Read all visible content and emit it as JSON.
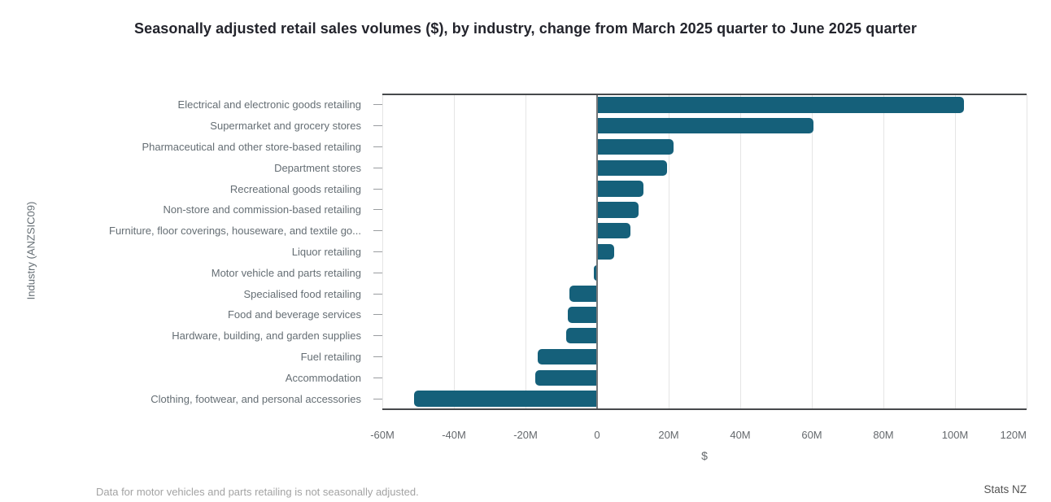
{
  "title": "Seasonally adjusted retail sales volumes ($), by industry, change from March 2025 quarter to June 2025 quarter",
  "footnote": "Data for motor vehicles and parts retailing is not seasonally adjusted.",
  "source": "Stats NZ",
  "colors": {
    "bar": "#15607a",
    "title_text": "#23242c",
    "category_label": "#656e74",
    "tick_label": "#65696d",
    "grid_line": "#e5e5e5",
    "zero_line": "#737678",
    "axis_border": "#47494c",
    "footnote_text": "#a3a3a3",
    "source_text": "#525252"
  },
  "chart_data": {
    "type": "bar",
    "orientation": "horizontal",
    "title": "Seasonally adjusted retail sales volumes ($), by industry, change from March 2025 quarter to June 2025 quarter",
    "xlabel": "$",
    "ylabel": "Industry (ANZSIC09)",
    "unit": "NZD millions",
    "xlim": [
      -60,
      120
    ],
    "grid": true,
    "legend": "none",
    "x_ticks": [
      {
        "value": -60,
        "label": "-60M"
      },
      {
        "value": -40,
        "label": "-40M"
      },
      {
        "value": -20,
        "label": "-20M"
      },
      {
        "value": 0,
        "label": "0"
      },
      {
        "value": 20,
        "label": "20M"
      },
      {
        "value": 40,
        "label": "40M"
      },
      {
        "value": 60,
        "label": "60M"
      },
      {
        "value": 80,
        "label": "80M"
      },
      {
        "value": 100,
        "label": "100M"
      },
      {
        "value": 120,
        "label": "120M"
      }
    ],
    "categories": [
      "Electrical and electronic goods retailing",
      "Supermarket and grocery stores",
      "Pharmaceutical and other store-based retailing",
      "Department stores",
      "Recreational goods retailing",
      "Non-store and commission-based retailing",
      "Furniture, floor coverings, houseware, and textile go...",
      "Liquor retailing",
      "Motor vehicle and parts retailing",
      "Specialised food retailing",
      "Food and beverage services",
      "Hardware, building, and garden supplies",
      "Fuel retailing",
      "Accommodation",
      "Clothing, footwear, and personal accessories"
    ],
    "values": [
      102.5,
      60.5,
      21.3,
      19.6,
      13.0,
      11.7,
      9.3,
      4.7,
      -1.0,
      -7.8,
      -8.2,
      -8.7,
      -16.5,
      -17.3,
      -51.2
    ]
  }
}
